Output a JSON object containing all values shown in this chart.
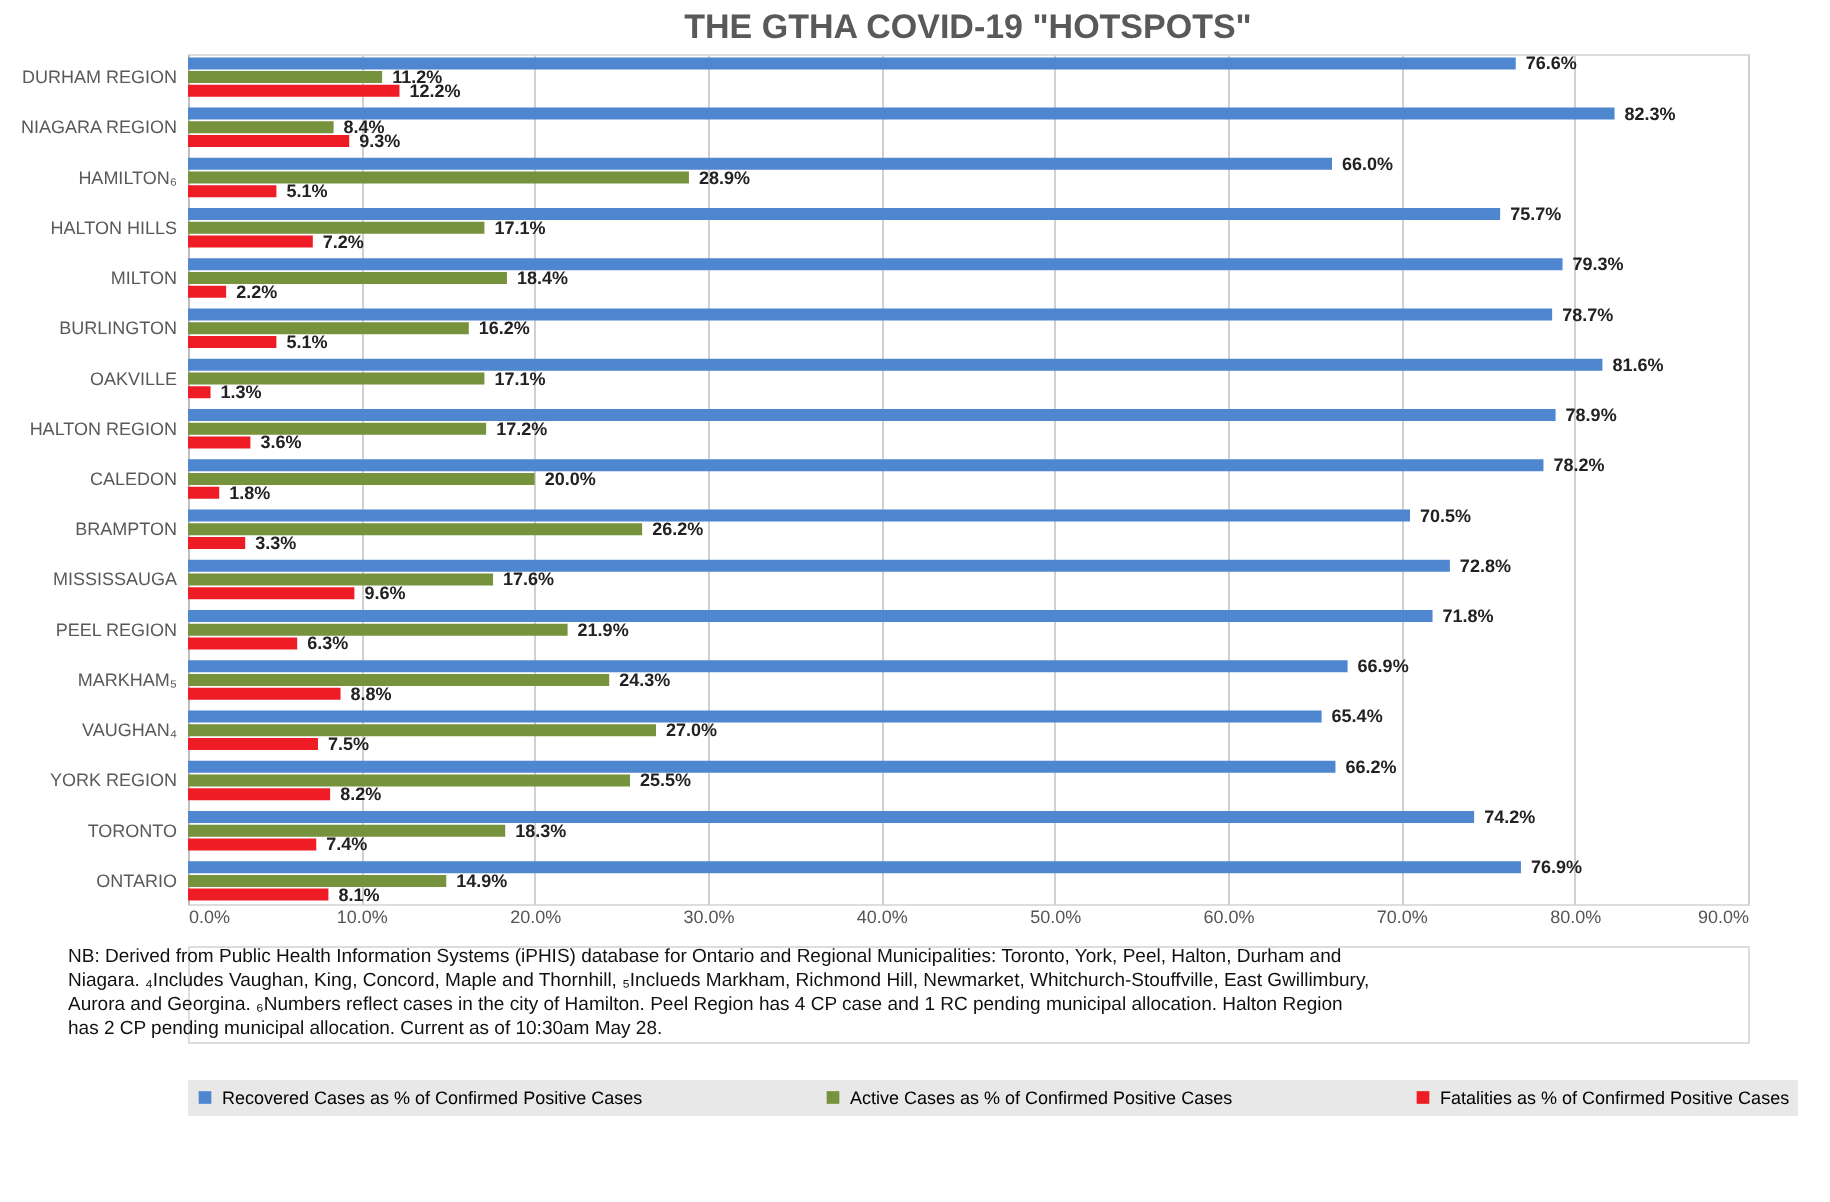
{
  "chart_data": {
    "type": "bar",
    "orientation": "horizontal",
    "title": "THE GTHA COVID-19 \"HOTSPOTS\"",
    "categories": [
      "DURHAM REGION",
      "NIAGARA REGION",
      "HAMILTON₆",
      "HALTON HILLS",
      "MILTON",
      "BURLINGTON",
      "OAKVILLE",
      "HALTON REGION",
      "CALEDON",
      "BRAMPTON",
      "MISSISSAUGA",
      "PEEL REGION",
      "MARKHAM₅",
      "VAUGHAN₄",
      "YORK REGION",
      "TORONTO",
      "ONTARIO"
    ],
    "series": [
      {
        "name": "Recovered Cases as % of Confirmed Positive Cases",
        "color": "#4f86d0",
        "values": [
          76.6,
          82.3,
          66.0,
          75.7,
          79.3,
          78.7,
          81.6,
          78.9,
          78.2,
          70.5,
          72.8,
          71.8,
          66.9,
          65.4,
          66.2,
          74.2,
          76.9
        ],
        "value_labels": [
          "76.6%",
          "82.3%",
          "66.0%",
          "75.7%",
          "79.3%",
          "78.7%",
          "81.6%",
          "78.9%",
          "78.2%",
          "70.5%",
          "72.8%",
          "71.8%",
          "66.9%",
          "65.4%",
          "66.2%",
          "74.2%",
          "76.9%"
        ]
      },
      {
        "name": "Active Cases as % of Confirmed Positive Cases",
        "color": "#76923c",
        "values": [
          11.2,
          8.4,
          28.9,
          17.1,
          18.4,
          16.2,
          17.1,
          17.2,
          20.0,
          26.2,
          17.6,
          21.9,
          24.3,
          27.0,
          25.5,
          18.3,
          14.9
        ],
        "value_labels": [
          "11.2%",
          "8.4%",
          "28.9%",
          "17.1%",
          "18.4%",
          "16.2%",
          "17.1%",
          "17.2%",
          "20.0%",
          "26.2%",
          "17.6%",
          "21.9%",
          "24.3%",
          "27.0%",
          "25.5%",
          "18.3%",
          "14.9%"
        ]
      },
      {
        "name": "Fatalities as % of Confirmed Positive Cases",
        "color": "#ee1c25",
        "values": [
          12.2,
          9.3,
          5.1,
          7.2,
          2.2,
          5.1,
          1.3,
          3.6,
          1.8,
          3.3,
          9.6,
          6.3,
          8.8,
          7.5,
          8.2,
          7.4,
          8.1
        ],
        "value_labels": [
          "12.2%",
          "9.3%",
          "5.1%",
          "7.2%",
          "2.2%",
          "5.1%",
          "1.3%",
          "3.6%",
          "1.8%",
          "3.3%",
          "9.6%",
          "6.3%",
          "8.8%",
          "7.5%",
          "8.2%",
          "7.4%",
          "8.1%"
        ]
      }
    ],
    "xlim": [
      0,
      90
    ],
    "xticks": [
      {
        "value": 0,
        "label": "0.0%"
      },
      {
        "value": 10,
        "label": "10.0%"
      },
      {
        "value": 20,
        "label": "20.0%"
      },
      {
        "value": 30,
        "label": "30.0%"
      },
      {
        "value": 40,
        "label": "40.0%"
      },
      {
        "value": 50,
        "label": "50.0%"
      },
      {
        "value": 60,
        "label": "60.0%"
      },
      {
        "value": 70,
        "label": "70.0%"
      },
      {
        "value": 80,
        "label": "80.0%"
      },
      {
        "value": 90,
        "label": "90.0%"
      }
    ],
    "grid": "x",
    "legend": "bottom",
    "annotations": [
      "NB: Derived from Public Health Information Systems (iPHIS) database for Ontario and Regional Municipalities: Toronto, York, Peel, Halton, Durham and Niagara. ₄Includes Vaughan, King, Concord, Maple and Thornhill, ₅Inclueds Markham, Richmond Hill, Newmarket, Whitchurch-Stouffville, East Gwillimbury, Aurora and Georgina. ₆Numbers reflect cases in the city of Hamilton. Peel Region has 4 CP case and 1 RC pending municipal allocation. Halton Region has 2 CP pending municipal allocation. Current as of 10:30am May 28."
    ]
  }
}
